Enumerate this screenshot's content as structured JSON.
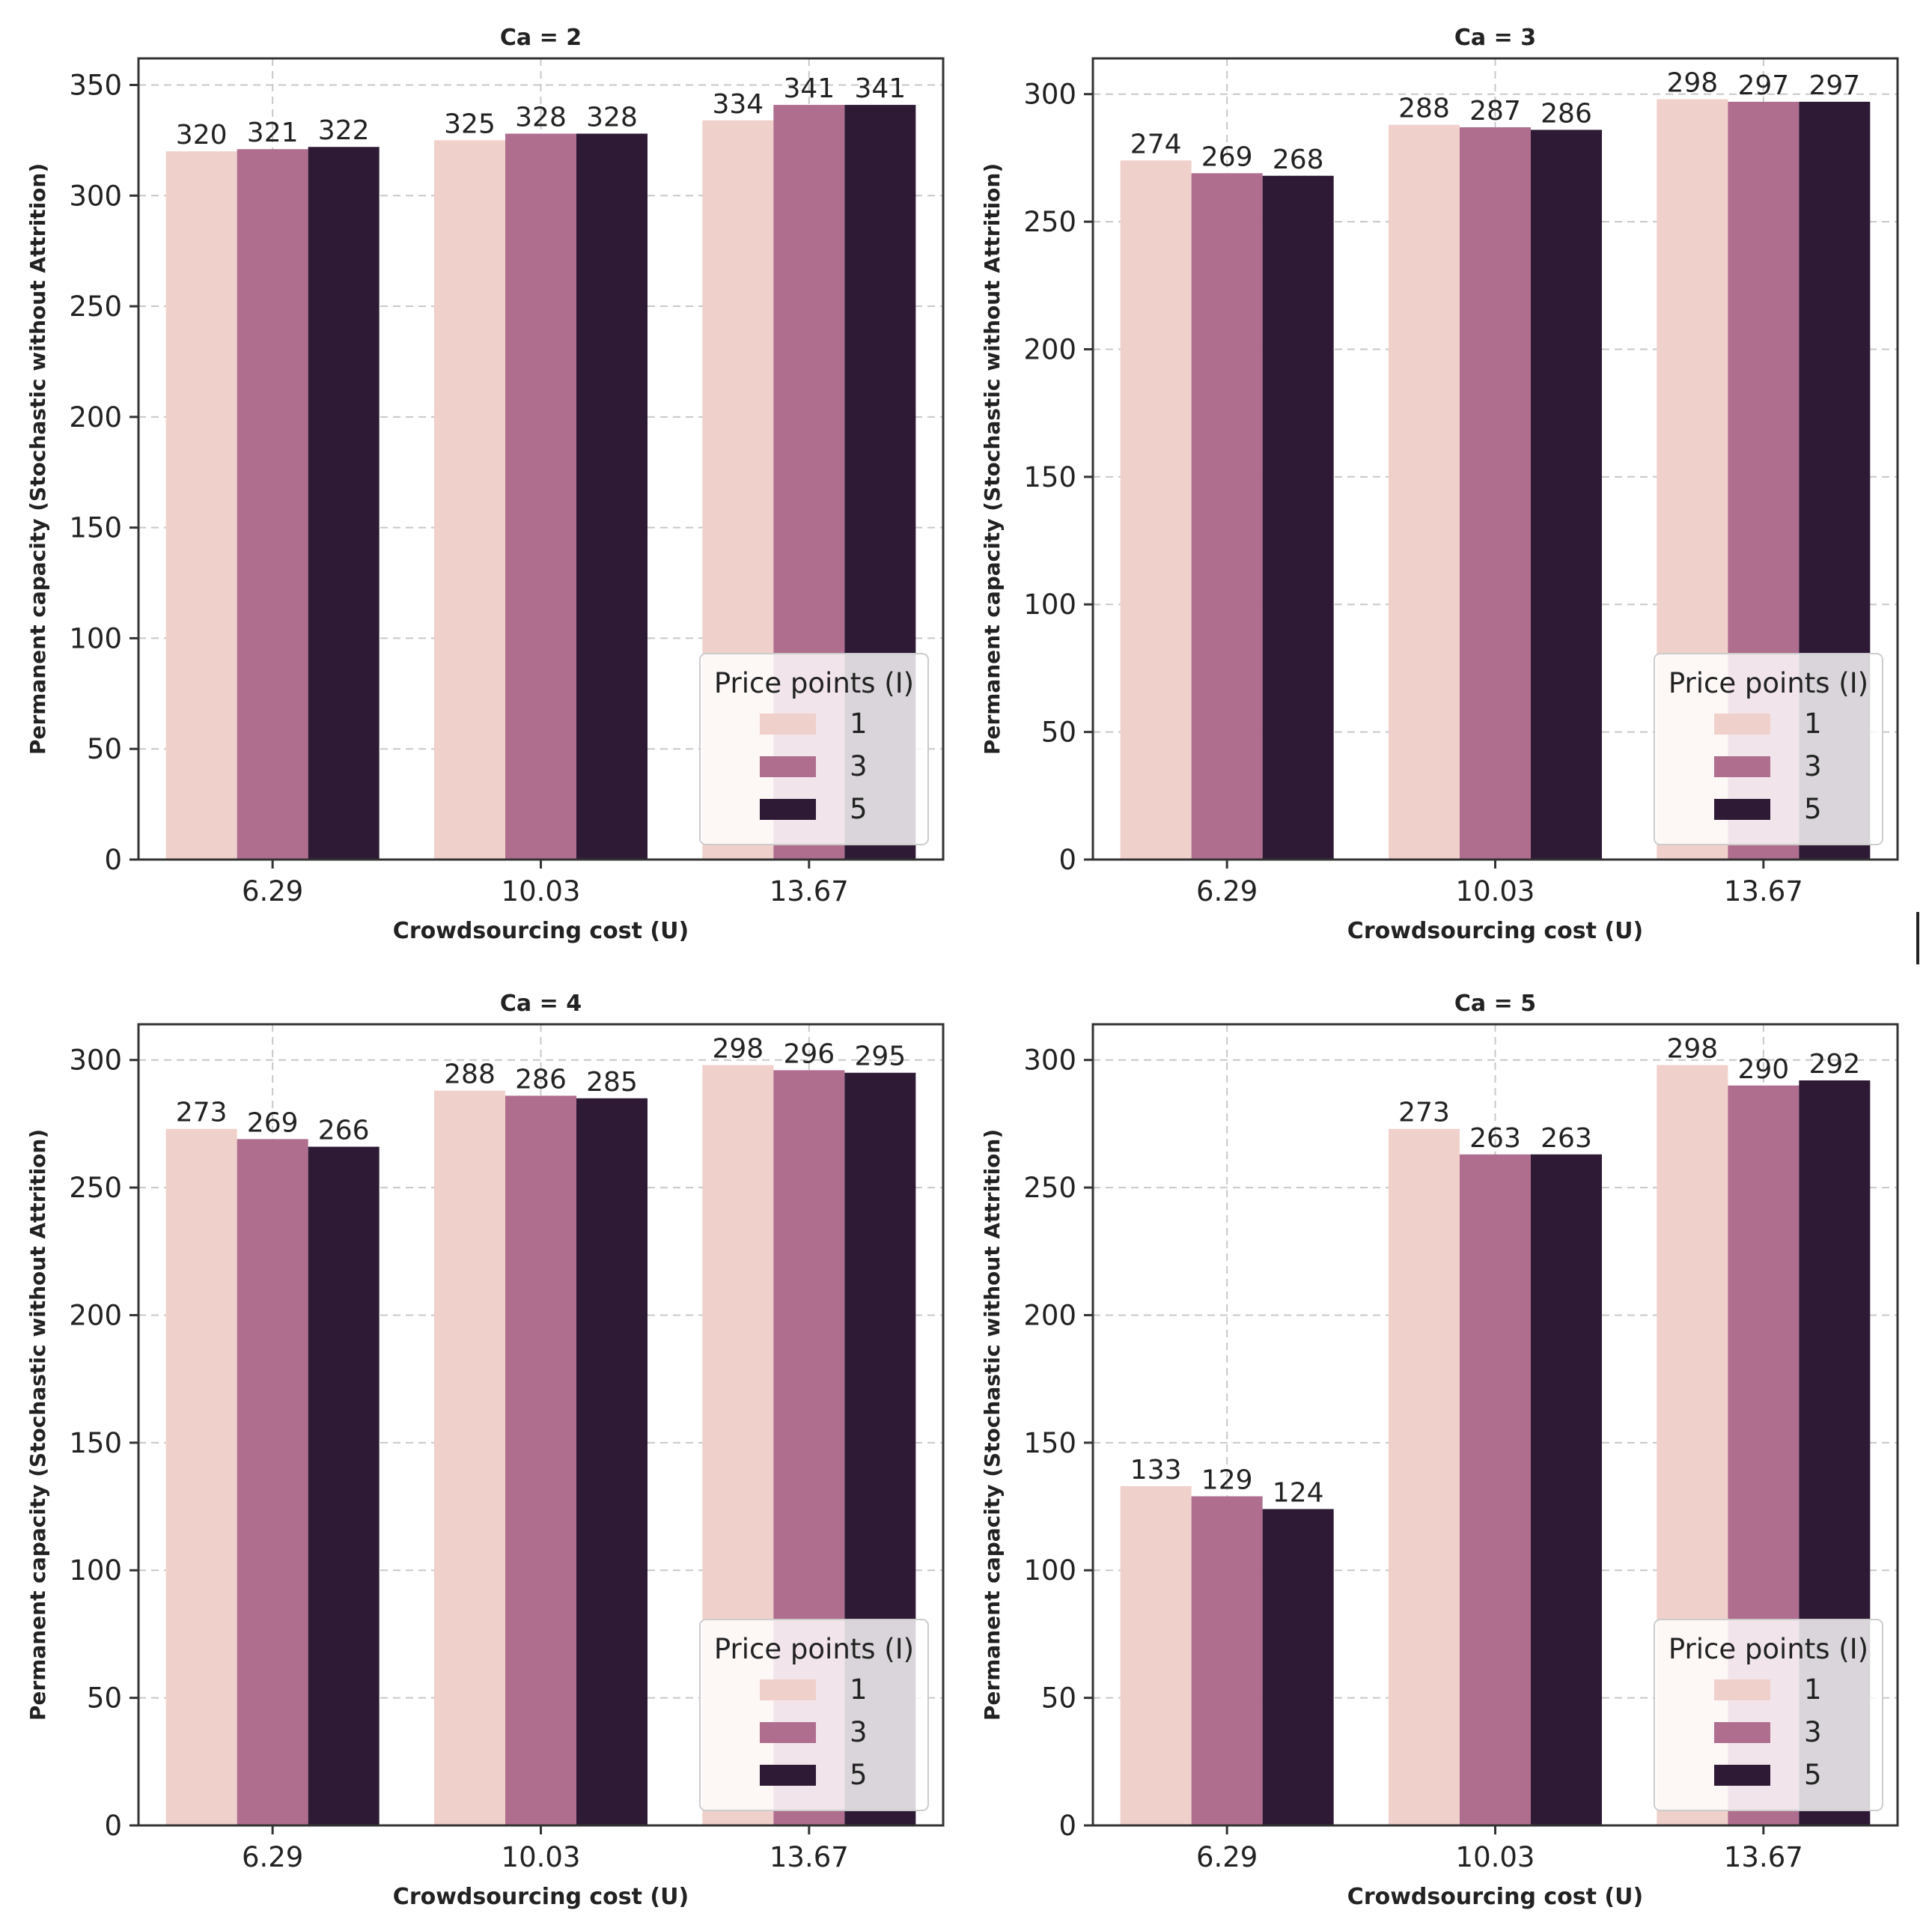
{
  "figure": {
    "legend_title": "Price points (I)",
    "colors": {
      "1": "#f0d0cb",
      "3": "#b06e8f",
      "5": "#2e1a35"
    }
  },
  "chart_data": [
    {
      "type": "bar",
      "title": "Ca = 2",
      "xlabel": "Crowdsourcing cost (U)",
      "ylabel": "Permanent capacity (Stochastic without Attrition)",
      "categories": [
        "6.29",
        "10.03",
        "13.67"
      ],
      "series": [
        {
          "name": "1",
          "values": [
            320,
            325,
            334
          ]
        },
        {
          "name": "3",
          "values": [
            321,
            328,
            341
          ]
        },
        {
          "name": "5",
          "values": [
            322,
            328,
            341
          ]
        }
      ],
      "ylim": [
        0,
        362
      ],
      "yticks": [
        0,
        50,
        100,
        150,
        200,
        250,
        300,
        350
      ],
      "grid": true,
      "legend_position": "lower right"
    },
    {
      "type": "bar",
      "title": "Ca = 3",
      "xlabel": "Crowdsourcing cost (U)",
      "ylabel": "Permanent capacity (Stochastic without Attrition)",
      "categories": [
        "6.29",
        "10.03",
        "13.67"
      ],
      "series": [
        {
          "name": "1",
          "values": [
            274,
            288,
            298
          ]
        },
        {
          "name": "3",
          "values": [
            269,
            287,
            297
          ]
        },
        {
          "name": "5",
          "values": [
            268,
            286,
            297
          ]
        }
      ],
      "ylim": [
        0,
        314
      ],
      "yticks": [
        0,
        50,
        100,
        150,
        200,
        250,
        300
      ],
      "grid": true,
      "legend_position": "lower right"
    },
    {
      "type": "bar",
      "title": "Ca = 4",
      "xlabel": "Crowdsourcing cost (U)",
      "ylabel": "Permanent capacity (Stochastic without Attrition)",
      "categories": [
        "6.29",
        "10.03",
        "13.67"
      ],
      "series": [
        {
          "name": "1",
          "values": [
            273,
            288,
            298
          ]
        },
        {
          "name": "3",
          "values": [
            269,
            286,
            296
          ]
        },
        {
          "name": "5",
          "values": [
            266,
            285,
            295
          ]
        }
      ],
      "ylim": [
        0,
        314
      ],
      "yticks": [
        0,
        50,
        100,
        150,
        200,
        250,
        300
      ],
      "grid": true,
      "legend_position": "lower right"
    },
    {
      "type": "bar",
      "title": "Ca = 5",
      "xlabel": "Crowdsourcing cost (U)",
      "ylabel": "Permanent capacity (Stochastic without Attrition)",
      "categories": [
        "6.29",
        "10.03",
        "13.67"
      ],
      "series": [
        {
          "name": "1",
          "values": [
            133,
            273,
            298
          ]
        },
        {
          "name": "3",
          "values": [
            129,
            263,
            290
          ]
        },
        {
          "name": "5",
          "values": [
            124,
            263,
            292
          ]
        }
      ],
      "ylim": [
        0,
        314
      ],
      "yticks": [
        0,
        50,
        100,
        150,
        200,
        250,
        300
      ],
      "grid": true,
      "legend_position": "lower right"
    }
  ]
}
